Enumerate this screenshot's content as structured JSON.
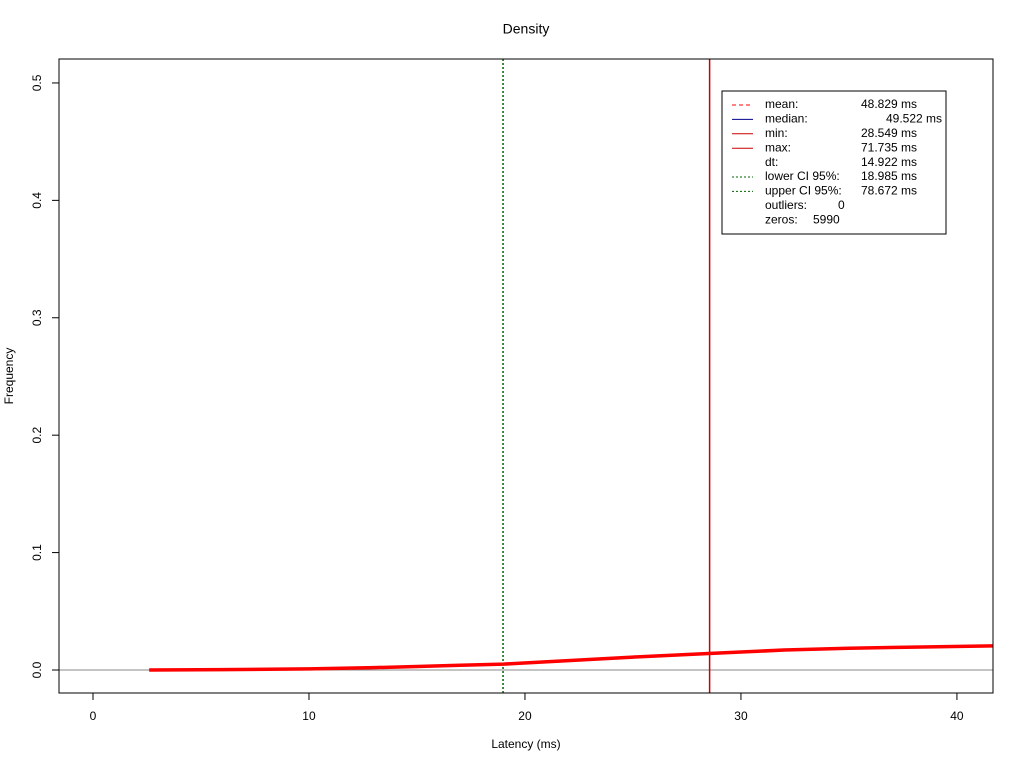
{
  "chart_data": {
    "type": "line",
    "title": "Density",
    "x_label": "Latency (ms)",
    "y_label": "Frequency",
    "xlim": [
      -1.574,
      41.67
    ],
    "ylim": [
      -0.0196,
      0.5204
    ],
    "xticks": [
      0,
      10,
      20,
      30,
      40
    ],
    "yticks": [
      {
        "value": 0,
        "label": "0.0"
      },
      0.1,
      0.2,
      0.3,
      0.4,
      0.5
    ],
    "series": [
      {
        "color": "#ff0000",
        "x": [
          2.6,
          6,
          10,
          13,
          15,
          17,
          19,
          22,
          25,
          28.5,
          32,
          35,
          38,
          41.67
        ],
        "values": [
          0,
          0.0003,
          0.001,
          0.002,
          0.003,
          0.004,
          0.005,
          0.008,
          0.011,
          0.014,
          0.017,
          0.0185,
          0.0195,
          0.0205
        ]
      }
    ],
    "legend": [
      {
        "label": "mean:",
        "value": 48.829,
        "value_label": "48.829 ms",
        "color": "#ff0000",
        "linestyle": "dashed"
      },
      {
        "label": "median:",
        "value": 49.522,
        "value_label": "49.522 ms",
        "color": "#00008b",
        "linestyle": "solid"
      },
      {
        "label": "min:",
        "value": 28.549,
        "value_label": "28.549 ms",
        "color": "#cc0000",
        "linestyle": "solid"
      },
      {
        "label": "max:",
        "value": 71.735,
        "value_label": "71.735 ms",
        "color": "#cc0000",
        "linestyle": "solid"
      },
      {
        "label": "dt:",
        "value": 14.922,
        "value_label": "14.922 ms"
      },
      {
        "label": "lower CI 95%:",
        "value": 18.985,
        "value_label": "18.985 ms",
        "color": "#006400",
        "linestyle": "dotted"
      },
      {
        "label": "upper CI 95%:",
        "value": 78.672,
        "value_label": "78.672 ms",
        "color": "#006400",
        "linestyle": "dotted"
      },
      {
        "label": "outliers:",
        "value": 0
      },
      {
        "label": "zeros:",
        "value": 5990
      }
    ]
  }
}
